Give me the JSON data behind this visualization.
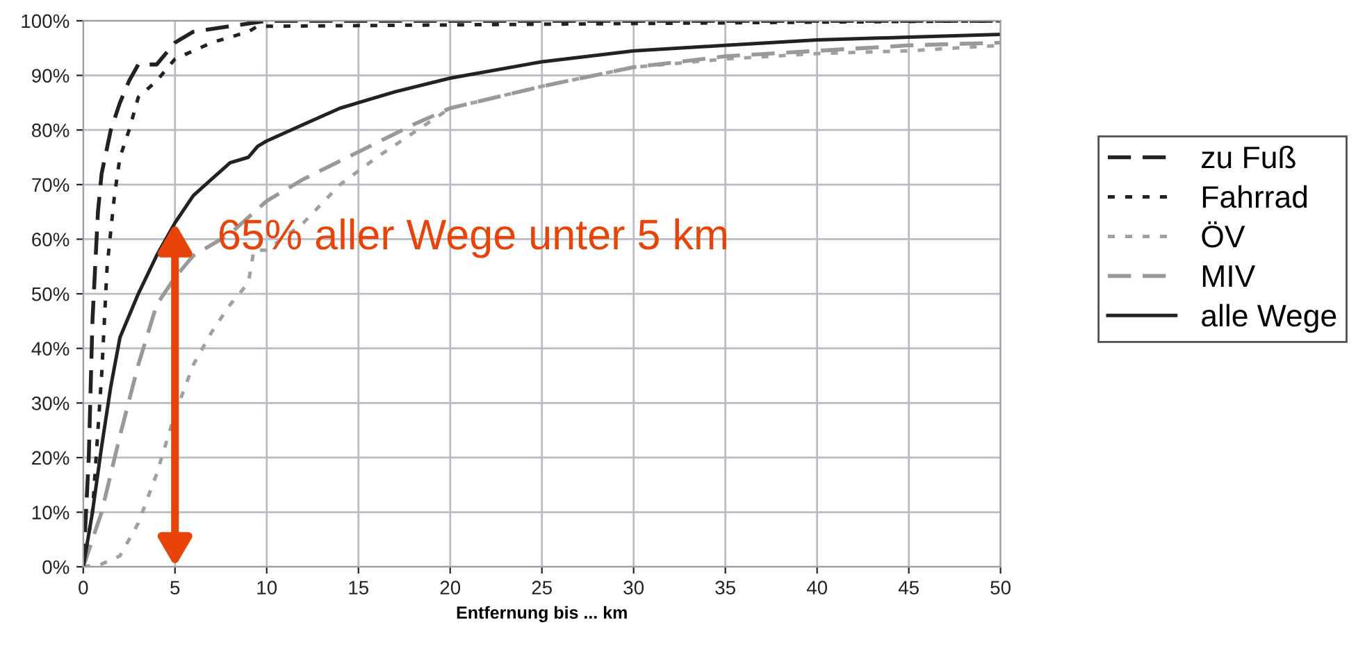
{
  "chart_data": {
    "type": "line",
    "xlabel": "Entfernung bis ... km",
    "xlim": [
      0,
      50
    ],
    "xticks": [
      0,
      5,
      10,
      15,
      20,
      25,
      30,
      35,
      40,
      45,
      50
    ],
    "ylim": [
      0,
      100
    ],
    "yticks": [
      {
        "value": 0,
        "label": "0%"
      },
      {
        "value": 10,
        "label": "10%"
      },
      {
        "value": 20,
        "label": "20%"
      },
      {
        "value": 30,
        "label": "30%"
      },
      {
        "value": 40,
        "label": "40%"
      },
      {
        "value": 50,
        "label": "50%"
      },
      {
        "value": 60,
        "label": "60%"
      },
      {
        "value": 70,
        "label": "70%"
      },
      {
        "value": 80,
        "label": "80%"
      },
      {
        "value": 90,
        "label": "90%"
      },
      {
        "value": 100,
        "label": "100%"
      }
    ],
    "grid": true,
    "legend": "right",
    "series": [
      {
        "name": "zu Fuß",
        "color": "#222222",
        "line_style": "dashed",
        "x": [
          0,
          0.3,
          0.5,
          0.8,
          1,
          1.5,
          2,
          2.5,
          3,
          3.5,
          4,
          5,
          6,
          8,
          10,
          50
        ],
        "values": [
          0,
          20,
          45,
          65,
          72,
          80,
          85,
          89,
          92,
          92,
          92,
          96,
          98,
          99,
          100,
          100
        ]
      },
      {
        "name": "Fahrrad",
        "color": "#222222",
        "line_style": "dotted",
        "x": [
          0,
          0.5,
          1,
          1.3,
          1.7,
          2,
          2.5,
          3,
          4,
          5,
          7,
          9,
          9.5,
          10,
          50
        ],
        "values": [
          0,
          10,
          35,
          55,
          68,
          75,
          80,
          86,
          89,
          93,
          96,
          98,
          99,
          99,
          100
        ]
      },
      {
        "name": "ÖV",
        "color": "#a0a0a0",
        "line_style": "dotted",
        "x": [
          0,
          1,
          2,
          3,
          4,
          5,
          6,
          7,
          8,
          9,
          9.3,
          10,
          12,
          14,
          16,
          20,
          25,
          30,
          35,
          40,
          45,
          50
        ],
        "values": [
          0,
          0.5,
          2,
          8,
          17,
          28,
          37,
          43,
          48,
          52,
          58,
          58,
          63,
          70,
          75,
          84,
          88,
          91.5,
          93,
          94,
          94.5,
          95.5
        ]
      },
      {
        "name": "MIV",
        "color": "#999999",
        "line_style": "dashed",
        "x": [
          0,
          1,
          2,
          3,
          4,
          5,
          6,
          7,
          8,
          9,
          10,
          12,
          15,
          18,
          20,
          25,
          30,
          35,
          40,
          45,
          50
        ],
        "values": [
          0,
          10,
          24,
          37,
          48,
          53,
          57,
          59,
          61,
          64,
          67,
          71,
          76,
          81,
          84,
          88,
          91.5,
          93.5,
          94.5,
          95.5,
          96
        ]
      },
      {
        "name": "alle Wege",
        "color": "#222222",
        "line_style": "solid",
        "x": [
          0,
          0.5,
          1,
          1.5,
          2,
          3,
          4,
          5,
          6,
          7,
          8,
          9,
          9.5,
          10,
          12,
          14,
          17,
          20,
          25,
          30,
          35,
          40,
          45,
          50
        ],
        "values": [
          0,
          10,
          22,
          33,
          42,
          50,
          57,
          63,
          68,
          71,
          74,
          75,
          77,
          78,
          81,
          84,
          87,
          89.5,
          92.5,
          94.5,
          95.5,
          96.5,
          97,
          97.5
        ]
      }
    ],
    "annotations": [
      {
        "text": "65% aller Wege unter 5 km",
        "x": 5,
        "y": 63
      }
    ]
  }
}
